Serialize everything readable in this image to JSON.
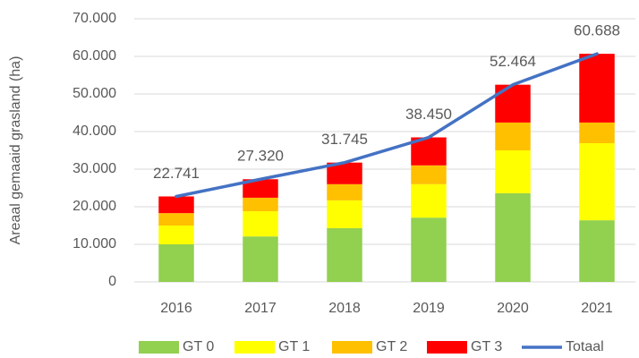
{
  "chart_data": {
    "type": "bar",
    "stacked": true,
    "grid": true,
    "legend": "bottom",
    "y_label": "Areaal gemaaid grasland (ha)",
    "categories": [
      "2016",
      "2017",
      "2018",
      "2019",
      "2020",
      "2021"
    ],
    "ylim": [
      0,
      70000
    ],
    "yticks": [
      0,
      {
        "value": 10000,
        "label": "10.000"
      },
      {
        "value": 20000,
        "label": "20.000"
      },
      {
        "value": 30000,
        "label": "30.000"
      },
      {
        "value": 40000,
        "label": "40.000"
      },
      {
        "value": 50000,
        "label": "50.000"
      },
      {
        "value": 60000,
        "label": "60.000"
      },
      {
        "value": 70000,
        "label": "70.000"
      }
    ],
    "series": [
      {
        "name": "GT 0",
        "type": "bar",
        "color": "#92d050",
        "values": [
          10000,
          12100,
          14300,
          17100,
          23600,
          16400
        ]
      },
      {
        "name": "GT 1",
        "type": "bar",
        "color": "#ffff00",
        "values": [
          5000,
          6700,
          7400,
          8900,
          11400,
          20500
        ]
      },
      {
        "name": "GT 2",
        "type": "bar",
        "color": "#ffc000",
        "values": [
          3300,
          3600,
          4300,
          5000,
          7400,
          5500
        ]
      },
      {
        "name": "GT 3",
        "type": "bar",
        "color": "#ff0000",
        "values": [
          4441,
          4920,
          5745,
          7450,
          10064,
          18288
        ]
      },
      {
        "name": "Totaal",
        "type": "line",
        "color": "#4472c4",
        "values": [
          22741,
          27320,
          31745,
          38450,
          52464,
          60688
        ],
        "value_labels": [
          "22.741",
          "27.320",
          "31.745",
          "38.450",
          "52.464",
          "60.688"
        ]
      }
    ]
  }
}
